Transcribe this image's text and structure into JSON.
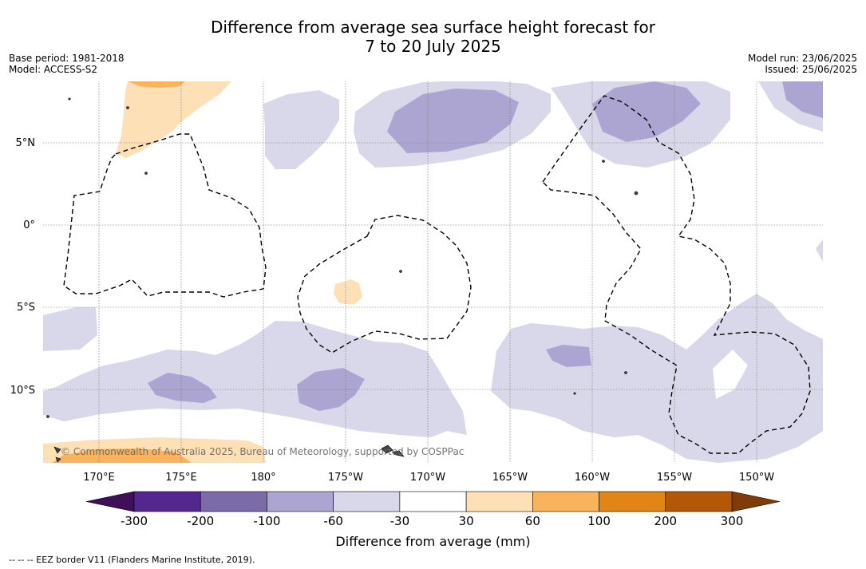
{
  "title": {
    "line1": "Difference from average sea surface height forecast for",
    "line2": "7 to 20 July 2025"
  },
  "meta": {
    "base_period": "Base period: 1981-2018",
    "model": "Model: ACCESS-S2",
    "model_run": "Model run: 23/06/2025",
    "issued": "Issued: 25/06/2025"
  },
  "map": {
    "lat_labels": [
      "5°N",
      "0°",
      "5°S",
      "10°S"
    ],
    "lon_labels": [
      "170°E",
      "175°E",
      "180°",
      "175°W",
      "170°W",
      "165°W",
      "160°W",
      "155°W",
      "150°W"
    ],
    "copyright": "© Commonwealth of Australia 2025, Bureau of Meteorology, supported by COSPPac"
  },
  "colorbar": {
    "ticks": [
      "-300",
      "-200",
      "-100",
      "-60",
      "-30",
      "30",
      "60",
      "100",
      "200",
      "300"
    ],
    "colors": [
      "#3f0f59",
      "#54278f",
      "#7b6ba8",
      "#ada5d1",
      "#d8d8ea",
      "#ffffff",
      "#fde0b6",
      "#f8b35c",
      "#e08516",
      "#b35806",
      "#7f3b08"
    ],
    "label": "Difference from average (mm)"
  },
  "footnote": "--  --  -- EEZ border V11 (Flanders Marine Institute, 2019)."
}
